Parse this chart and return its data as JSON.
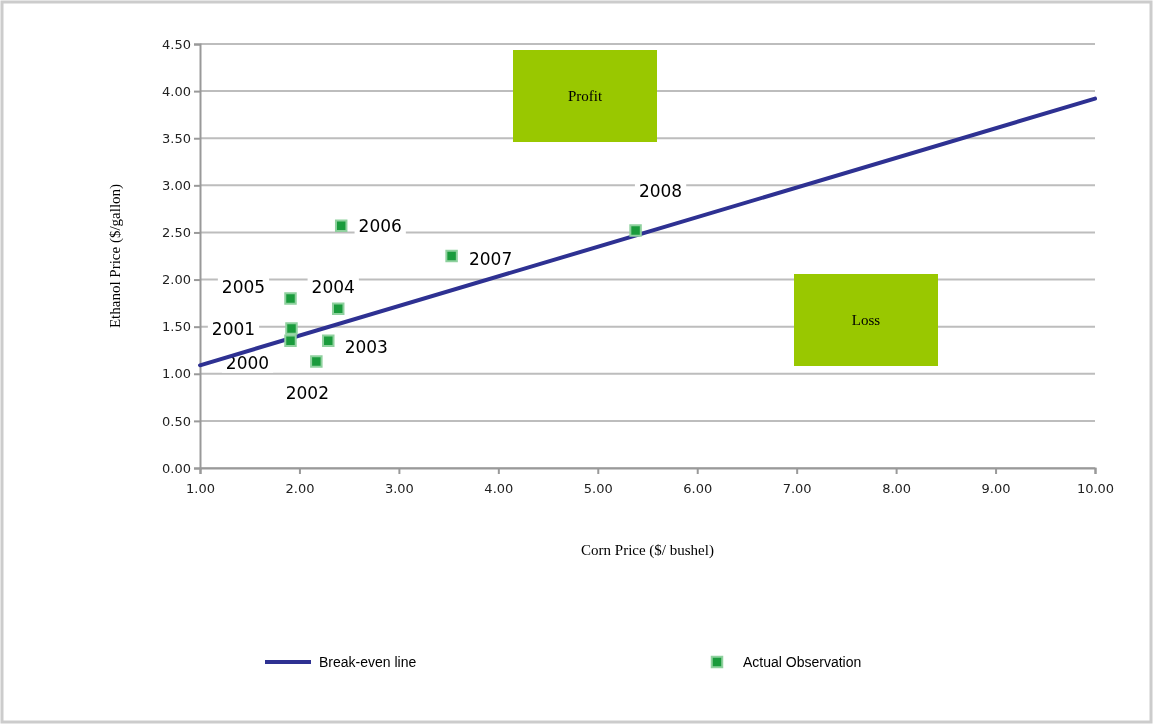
{
  "chart_data": {
    "type": "scatter",
    "xlabel": "Corn Price ($/ bushel)",
    "ylabel": "Ethanol Price ($/gallon)",
    "xlim": [
      1,
      10
    ],
    "xticks": [
      {
        "value": 1,
        "label": "1.00"
      },
      {
        "value": 2,
        "label": "2.00"
      },
      {
        "value": 3,
        "label": "3.00"
      },
      {
        "value": 4,
        "label": "4.00"
      },
      {
        "value": 5,
        "label": "5.00"
      },
      {
        "value": 6,
        "label": "6.00"
      },
      {
        "value": 7,
        "label": "7.00"
      },
      {
        "value": 8,
        "label": "8.00"
      },
      {
        "value": 9,
        "label": "9.00"
      },
      {
        "value": 10,
        "label": "10.00"
      }
    ],
    "ylim": [
      0,
      4.5
    ],
    "yticks": [
      {
        "value": 0,
        "label": "0.00"
      },
      {
        "value": 0.5,
        "label": "0.50"
      },
      {
        "value": 1,
        "label": "1.00"
      },
      {
        "value": 1.5,
        "label": "1.50"
      },
      {
        "value": 2,
        "label": "2.00"
      },
      {
        "value": 2.5,
        "label": "2.50"
      },
      {
        "value": 3,
        "label": "3.00"
      },
      {
        "value": 3.5,
        "label": "3.50"
      },
      {
        "value": 4,
        "label": "4.00"
      },
      {
        "value": 4.5,
        "label": "4.50"
      }
    ],
    "grid": "y",
    "legend": "bottom",
    "series": [
      {
        "name": "Break-even line",
        "type": "line",
        "color": "#2e3192",
        "x": [
          1,
          10
        ],
        "values": [
          1.09,
          3.92
        ]
      },
      {
        "name": "Actual Observation",
        "marker": "square",
        "color": "#1a9b3c",
        "x": [
          1.91,
          1.92,
          2.17,
          2.29,
          2.39,
          1.91,
          2.42,
          3.53,
          5.38
        ],
        "values": [
          1.35,
          1.48,
          1.13,
          1.35,
          1.69,
          1.8,
          2.57,
          2.25,
          2.52
        ]
      }
    ],
    "annotations": [
      {
        "text": "2000",
        "x": 1.91,
        "y": 1.35
      },
      {
        "text": "2001",
        "x": 1.92,
        "y": 1.48
      },
      {
        "text": "2002",
        "x": 2.17,
        "y": 1.13
      },
      {
        "text": "2003",
        "x": 2.29,
        "y": 1.35
      },
      {
        "text": "2004",
        "x": 2.39,
        "y": 1.69
      },
      {
        "text": "2005",
        "x": 1.91,
        "y": 1.8
      },
      {
        "text": "2006",
        "x": 2.42,
        "y": 2.57
      },
      {
        "text": "2007",
        "x": 3.53,
        "y": 2.25
      },
      {
        "text": "2008",
        "x": 5.38,
        "y": 2.52
      },
      "Profit",
      "Loss"
    ]
  }
}
